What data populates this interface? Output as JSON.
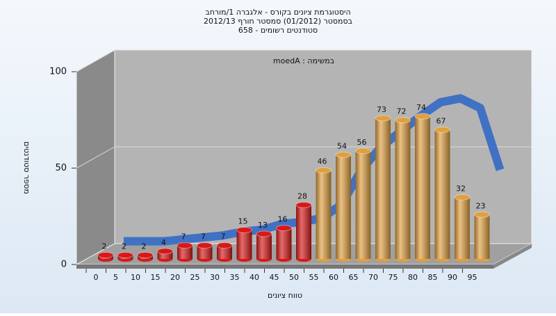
{
  "chart_data": {
    "type": "bar3d",
    "title_lines": [
      "היסטוגרמת ציונים בקורס - אלגברה 1/מורחב",
      "בסמסטר  (01/2012)  סמסטר חורף 2012/13",
      "סטודנטים רשומים - 658"
    ],
    "annotation": "במשימה : moedA",
    "x_label": "טווח ציונים",
    "y_label": "מספר סטודנטים",
    "categories": [
      "0",
      "5",
      "10",
      "15",
      "20",
      "25",
      "30",
      "35",
      "40",
      "45",
      "50",
      "55",
      "60",
      "65",
      "70",
      "75",
      "80",
      "85",
      "90",
      "95"
    ],
    "values": [
      2,
      2,
      2,
      4,
      7,
      7,
      7,
      15,
      13,
      16,
      28,
      46,
      54,
      56,
      73,
      72,
      74,
      67,
      32,
      23
    ],
    "colors": [
      "#d81818",
      "#d81818",
      "#d81818",
      "#d81818",
      "#d81818",
      "#d81818",
      "#d81818",
      "#d81818",
      "#d81818",
      "#d81818",
      "#d81818",
      "#e0a040",
      "#e0a040",
      "#e0a040",
      "#e0a040",
      "#e0a040",
      "#e0a040",
      "#e0a040",
      "#e0a040",
      "#e0a040"
    ],
    "trend": {
      "color": "#3a6ec4",
      "values": [
        3,
        3,
        3,
        4,
        5,
        6,
        8,
        9,
        12,
        13,
        15,
        22,
        40,
        52,
        60,
        68,
        75,
        77,
        72,
        40
      ]
    },
    "ylim": [
      0,
      100
    ],
    "yticks": [
      0,
      50,
      100
    ],
    "grid": true
  }
}
